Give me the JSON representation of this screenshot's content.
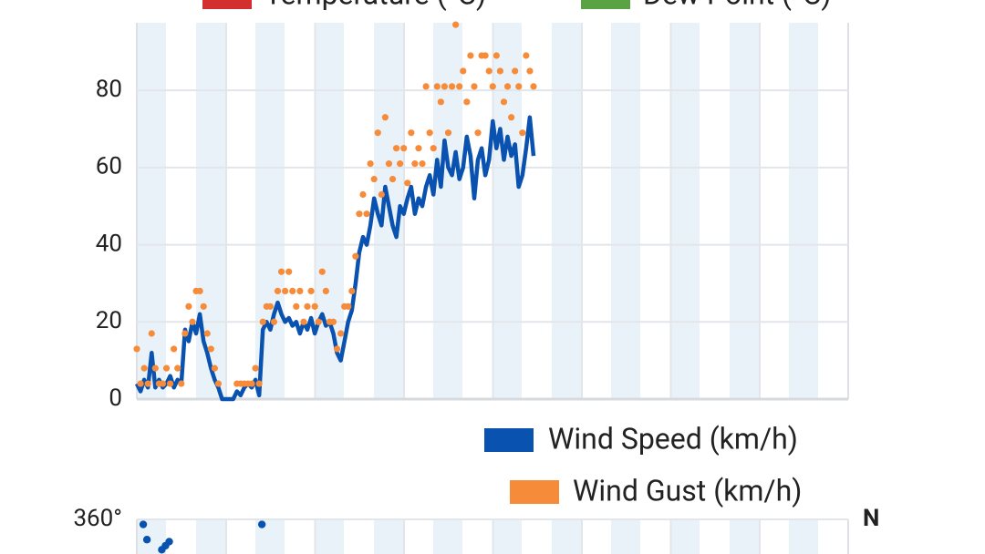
{
  "chart_data": [
    {
      "type": "line",
      "series": [
        {
          "name": "Temperature (°C)",
          "color": "#d32f2f"
        },
        {
          "name": "Dew Point (°C)",
          "color": "#5aa345"
        }
      ]
    },
    {
      "type": "line",
      "ylim": [
        0,
        97.5
      ],
      "yticks": [
        0,
        20,
        40,
        60,
        80
      ],
      "grid": true,
      "series": [
        {
          "name": "Wind Speed (km/h)",
          "color": "#0a52b0",
          "style": "line",
          "values": [
            4,
            2,
            5,
            3,
            12,
            3,
            5,
            3,
            4,
            6,
            3,
            5,
            4,
            18,
            15,
            20,
            17,
            22,
            15,
            12,
            8,
            5,
            3,
            0,
            0,
            0,
            0,
            2,
            1,
            3,
            4,
            3,
            5,
            1,
            18,
            20,
            18,
            22,
            25,
            22,
            20,
            21,
            19,
            20,
            17,
            20,
            18,
            21,
            17,
            20,
            22,
            19,
            20,
            17,
            12,
            10,
            15,
            20,
            23,
            30,
            38,
            42,
            40,
            45,
            52,
            48,
            45,
            55,
            50,
            45,
            42,
            50,
            48,
            52,
            55,
            48,
            52,
            50,
            55,
            58,
            53,
            62,
            55,
            67,
            60,
            58,
            64,
            57,
            60,
            68,
            63,
            52,
            62,
            65,
            58,
            62,
            72,
            65,
            70,
            62,
            68,
            63,
            66,
            55,
            58,
            65,
            73,
            63
          ]
        },
        {
          "name": "Wind Gust (km/h)",
          "color": "#f68b3a",
          "style": "dots",
          "values": [
            13,
            4,
            8,
            4,
            17,
            8,
            4,
            4,
            8,
            4,
            13,
            8,
            4,
            17,
            24,
            20,
            28,
            28,
            24,
            17,
            13,
            8,
            4,
            null,
            null,
            null,
            null,
            4,
            4,
            4,
            4,
            4,
            8,
            4,
            20,
            24,
            24,
            20,
            28,
            33,
            28,
            33,
            28,
            24,
            28,
            20,
            24,
            28,
            24,
            20,
            33,
            28,
            20,
            20,
            13,
            17,
            24,
            24,
            28,
            37,
            48,
            53,
            48,
            61,
            57,
            69,
            53,
            73,
            61,
            57,
            65,
            61,
            65,
            56,
            69,
            61,
            65,
            61,
            81,
            69,
            65,
            81,
            77,
            81,
            69,
            81,
            97,
            81,
            85,
            77,
            89,
            81,
            69,
            89,
            89,
            85,
            81,
            89,
            85,
            77,
            81,
            73,
            85,
            81,
            69,
            89,
            85,
            81
          ]
        }
      ]
    },
    {
      "type": "scatter",
      "ylim": [
        0,
        360
      ],
      "yticks": [
        {
          "value": 360,
          "label": "360°"
        }
      ],
      "grid": true,
      "right_ticks": [
        {
          "value": 360,
          "label": "N"
        }
      ],
      "color": "#0a52b0",
      "values": [
        null,
        355,
        340,
        null,
        null,
        null,
        330,
        334,
        338,
        null,
        null,
        null,
        null,
        null,
        null,
        null,
        null,
        null,
        null,
        null,
        null,
        null,
        null,
        null,
        null,
        null,
        null,
        null,
        null,
        null,
        null,
        null,
        null,
        355
      ]
    }
  ]
}
